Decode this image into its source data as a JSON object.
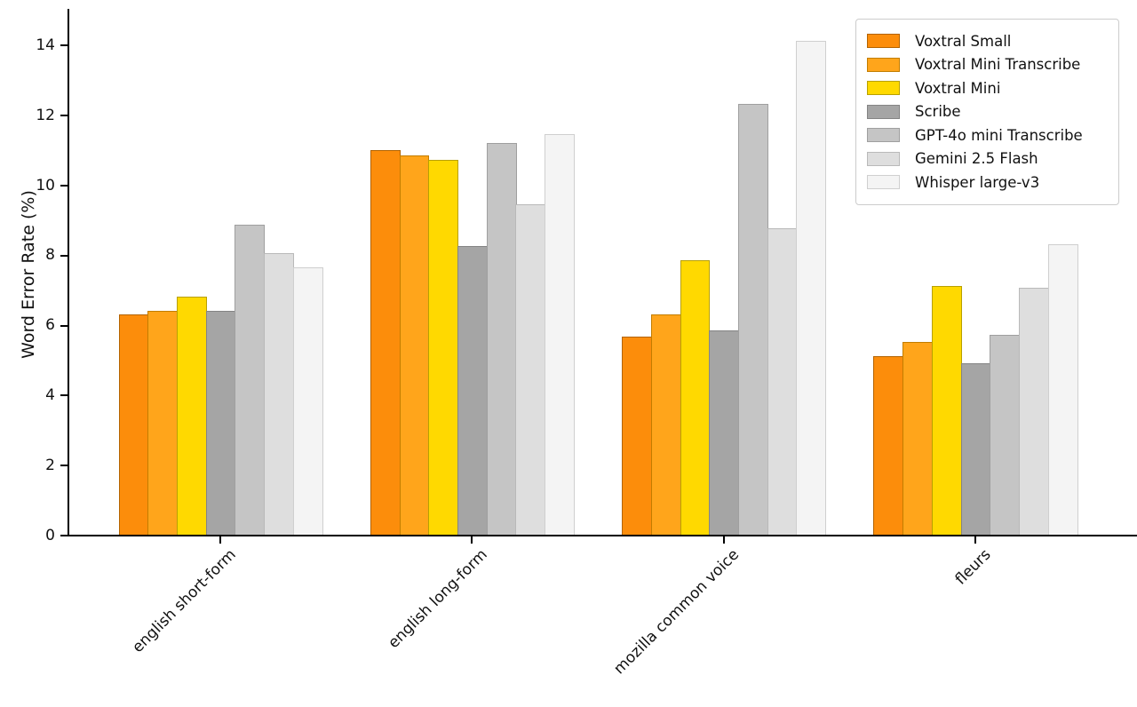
{
  "figure": {
    "background": "#ffffff",
    "axis_color": "#000000"
  },
  "chart_data": {
    "type": "bar",
    "title": "",
    "xlabel": "",
    "ylabel": "Word Error Rate (%)",
    "ylim": [
      0,
      15
    ],
    "yticks": [
      0,
      2,
      4,
      6,
      8,
      10,
      12,
      14
    ],
    "grid": false,
    "legend_position": "upper right",
    "categories": [
      "english short-form",
      "english long-form",
      "mozilla common voice",
      "fleurs"
    ],
    "series": [
      {
        "name": "Voxtral Small",
        "color": "#FC8D0B",
        "edge": "#B36300",
        "values": [
          6.3,
          11.0,
          5.65,
          5.1
        ]
      },
      {
        "name": "Voxtral Mini Transcribe",
        "color": "#FFA51B",
        "edge": "#C27D00",
        "values": [
          6.4,
          10.85,
          6.3,
          5.5
        ]
      },
      {
        "name": "Voxtral Mini",
        "color": "#FFD900",
        "edge": "#B8A000",
        "values": [
          6.8,
          10.7,
          7.85,
          7.1
        ]
      },
      {
        "name": "Scribe",
        "color": "#A5A5A5",
        "edge": "#848484",
        "values": [
          6.4,
          8.25,
          5.85,
          4.9
        ]
      },
      {
        "name": "GPT-4o mini Transcribe",
        "color": "#C5C5C5",
        "edge": "#9F9F9F",
        "values": [
          8.85,
          11.2,
          12.3,
          5.7
        ]
      },
      {
        "name": "Gemini 2.5 Flash",
        "color": "#DEDEDE",
        "edge": "#B9B9B9",
        "values": [
          8.05,
          9.45,
          8.75,
          7.05
        ]
      },
      {
        "name": "Whisper large-v3",
        "color": "#F4F4F4",
        "edge": "#CFCFCF",
        "values": [
          7.65,
          11.45,
          14.1,
          8.3
        ]
      }
    ]
  }
}
